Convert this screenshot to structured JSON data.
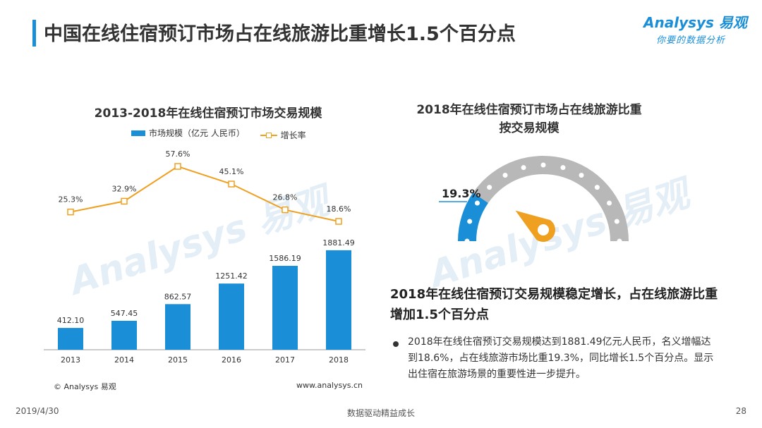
{
  "page": {
    "title": "中国在线住宿预订市场占在线旅游比重增长1.5个百分点",
    "date": "2019/4/30",
    "footer": "数据驱动精益成长",
    "page_number": "28"
  },
  "logo": {
    "brand": "Analysys 易观",
    "slogan": "你要的数据分析"
  },
  "chart_data": [
    {
      "type": "bar",
      "title": "2013-2018年在线住宿预订市场交易规模",
      "categories": [
        "2013",
        "2014",
        "2015",
        "2016",
        "2017",
        "2018"
      ],
      "series": [
        {
          "name": "市场规模（亿元 人民币）",
          "type": "bar",
          "values": [
            412.1,
            547.45,
            862.57,
            1251.42,
            1586.19,
            1881.49
          ],
          "labels": [
            "412.10",
            "547.45",
            "862.57",
            "1251.42",
            "1586.19",
            "1881.49"
          ],
          "color": "#1a8fd8"
        },
        {
          "name": "增长率",
          "type": "line",
          "values": [
            25.3,
            32.9,
            57.6,
            45.1,
            26.8,
            18.6
          ],
          "labels": [
            "25.3%",
            "32.9%",
            "57.6%",
            "45.1%",
            "26.8%",
            "18.6%"
          ],
          "color": "#f0a020"
        }
      ],
      "source": "© Analysys 易观",
      "site": "www.analysys.cn"
    },
    {
      "type": "gauge",
      "title_line1": "2018年在线住宿预订市场占在线旅游比重",
      "title_line2": "按交易规模",
      "value": 19.3,
      "value_label": "19.3%",
      "colors": {
        "filled": "#1a8fd8",
        "rest": "#b8b8b8",
        "pointer": "#f0a020"
      }
    }
  ],
  "highlight": {
    "title": "2018年在线住宿预订交易规模稳定增长，占在线旅游比重增加1.5个百分点",
    "bullet": "2018年在线住宿预订交易规模达到1881.49亿元人民币，名义增幅达到18.6%，占在线旅游市场比重19.3%，同比增长1.5个百分点。显示出住宿在旅游场景的重要性进一步提升。"
  }
}
